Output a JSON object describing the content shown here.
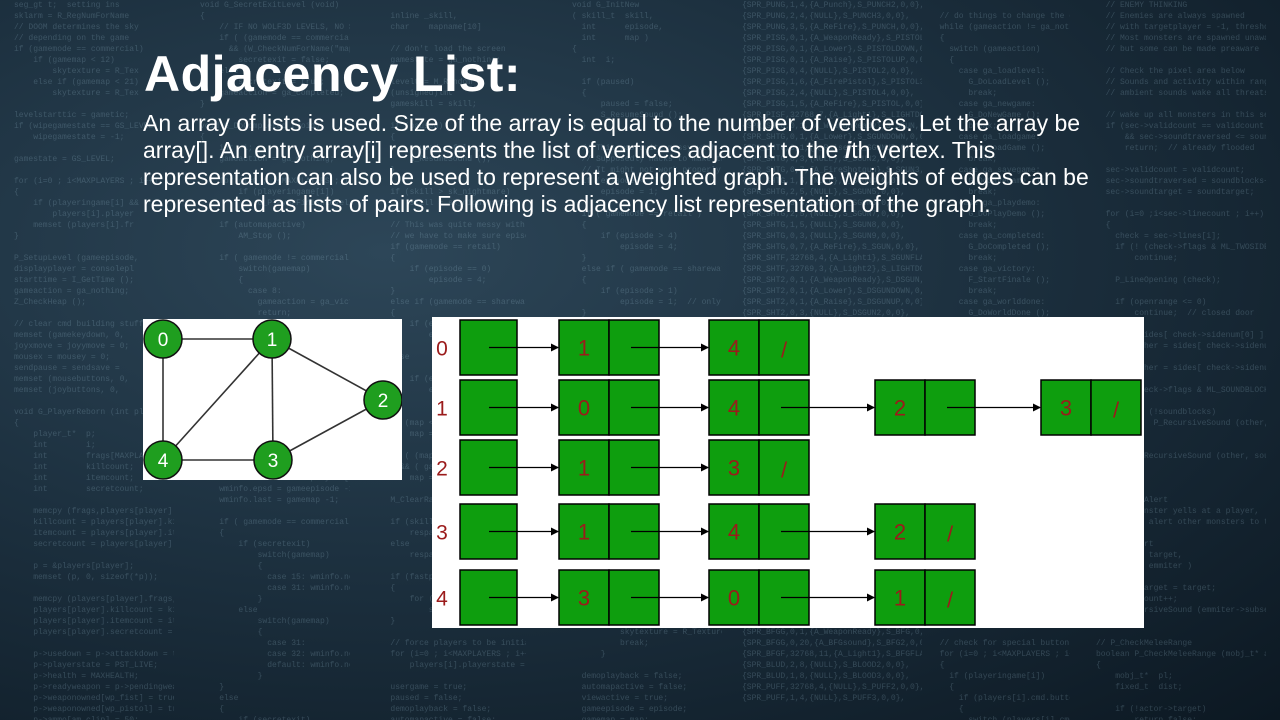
{
  "slide": {
    "title": "Adjacency List:",
    "description_part1": "An array of lists is used. Size of the array is equal to the number of vertices. Let the array be array[]. An entry array[i] represents the list of vertices adjacent to the ",
    "description_emph": "i",
    "description_part2": "th vertex. This representation can also be used to represent a weighted graph. The weights of edges can be represented as lists of pairs. Following is adjacency list representation of the graph."
  },
  "graph": {
    "node_color": "#1f9e1f",
    "nodes": [
      {
        "id": "0",
        "label": "0"
      },
      {
        "id": "1",
        "label": "1"
      },
      {
        "id": "2",
        "label": "2"
      },
      {
        "id": "3",
        "label": "3"
      },
      {
        "id": "4",
        "label": "4"
      }
    ],
    "edges": [
      [
        "0",
        "1"
      ],
      [
        "0",
        "4"
      ],
      [
        "1",
        "4"
      ],
      [
        "1",
        "3"
      ],
      [
        "1",
        "2"
      ],
      [
        "2",
        "3"
      ],
      [
        "4",
        "3"
      ]
    ]
  },
  "adjacency_list": {
    "cell_color": "#0e9e0e",
    "null_marker": "/",
    "rows": [
      {
        "index": "0",
        "neighbors": [
          "1",
          "4"
        ]
      },
      {
        "index": "1",
        "neighbors": [
          "0",
          "4",
          "2",
          "3"
        ]
      },
      {
        "index": "2",
        "neighbors": [
          "1",
          "3"
        ]
      },
      {
        "index": "3",
        "neighbors": [
          "1",
          "4",
          "2"
        ]
      },
      {
        "index": "4",
        "neighbors": [
          "3",
          "0",
          "1"
        ]
      }
    ]
  }
}
